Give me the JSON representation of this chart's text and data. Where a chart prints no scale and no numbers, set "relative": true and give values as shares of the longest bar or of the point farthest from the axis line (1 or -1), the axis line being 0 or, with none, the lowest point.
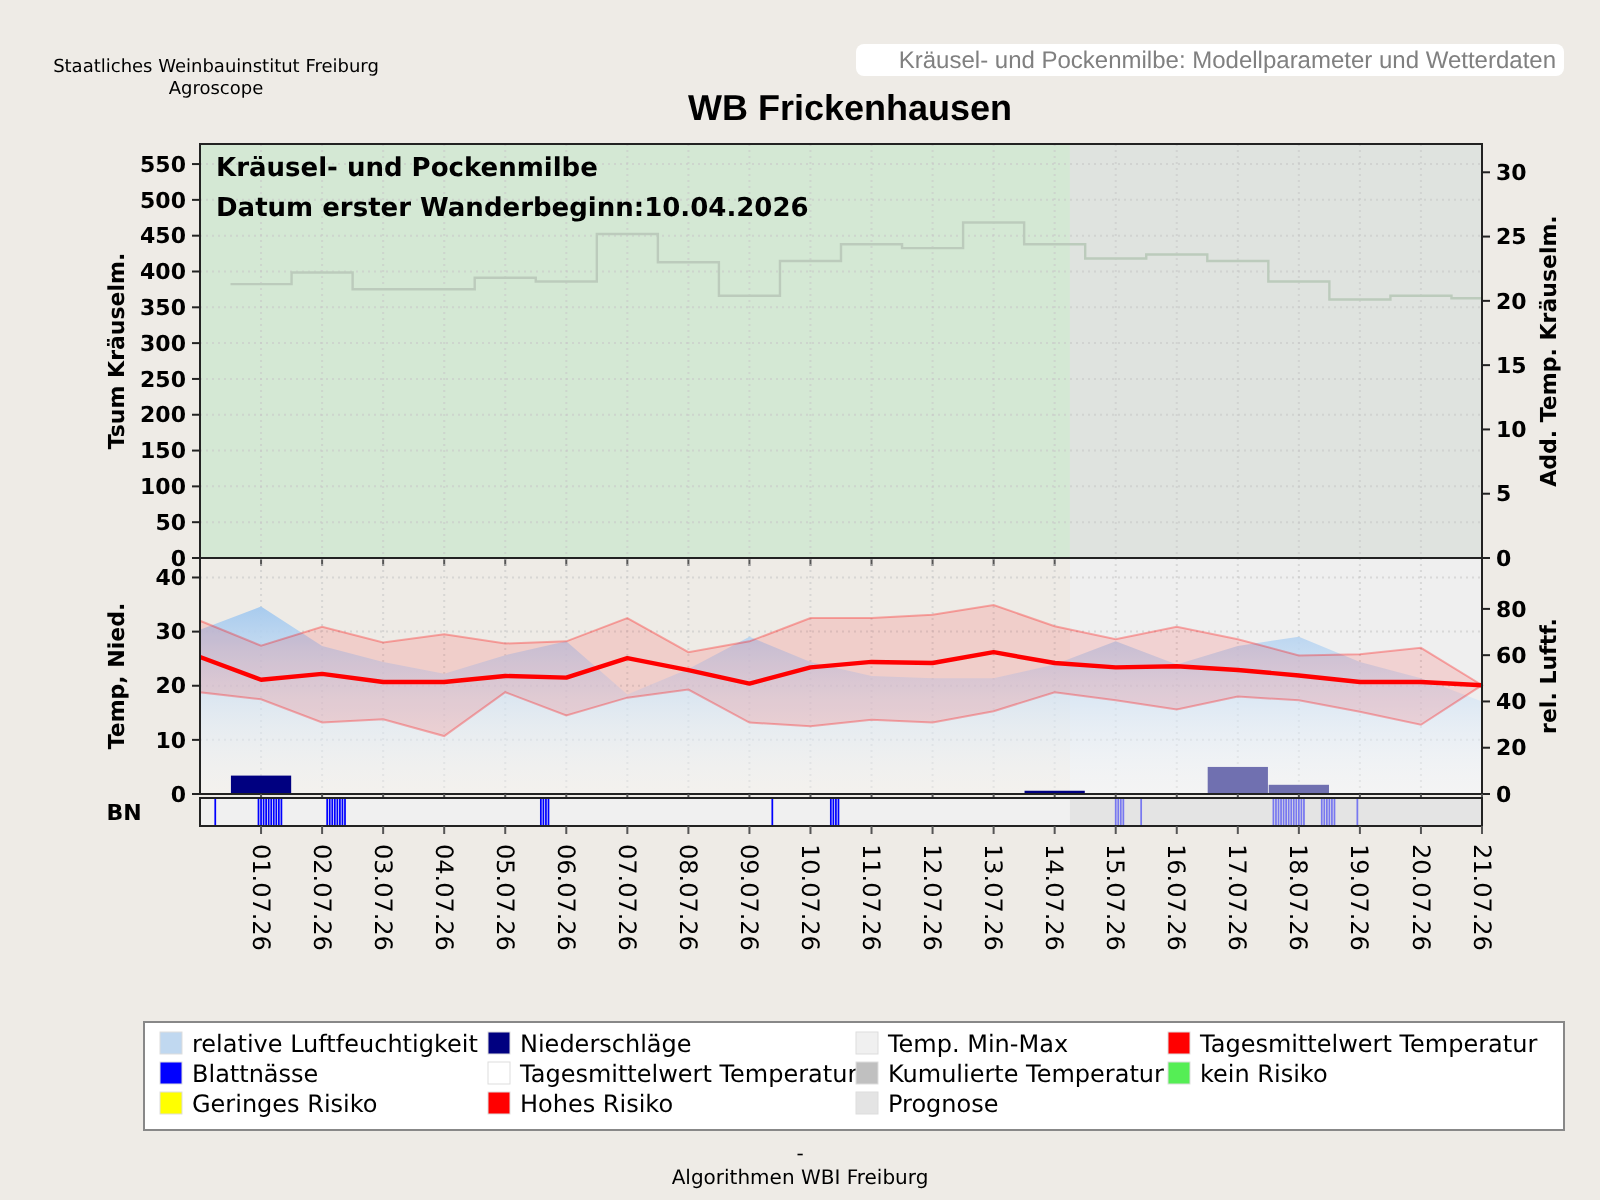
{
  "chart_data": [
    {
      "type": "step",
      "title": "WB Frickenhausen",
      "subtitle": "Kräusel- und Pockenmilbe: Modellparameter und Wetterdaten",
      "ylabel": "Tsum Kräuselm.",
      "y2label": "Add. Temp. Kräuselm.",
      "annotations": [
        "Kräusel- und Pockenmilbe",
        "Datum  erster Wanderbeginn:10.04.2026",
        "Staatliches Weinbauinstitut Freiburg",
        "Agroscope"
      ],
      "xlim": [
        "2026-06-30",
        "2026-07-21"
      ],
      "xticks": [
        {
          "value": "2026-07-01",
          "label": null
        },
        {
          "value": "2026-07-02",
          "label": null
        },
        {
          "value": "2026-07-03",
          "label": null
        },
        {
          "value": "2026-07-04",
          "label": null
        },
        {
          "value": "2026-07-05",
          "label": null
        },
        {
          "value": "2026-07-06",
          "label": null
        },
        {
          "value": "2026-07-07",
          "label": null
        },
        {
          "value": "2026-07-08",
          "label": null
        },
        {
          "value": "2026-07-09",
          "label": null
        },
        {
          "value": "2026-07-10",
          "label": null
        },
        {
          "value": "2026-07-11",
          "label": null
        },
        {
          "value": "2026-07-12",
          "label": null
        },
        {
          "value": "2026-07-13",
          "label": null
        },
        {
          "value": "2026-07-14",
          "label": null
        },
        {
          "value": "2026-07-15",
          "label": null
        },
        {
          "value": "2026-07-16",
          "label": null
        },
        {
          "value": "2026-07-17",
          "label": null
        },
        {
          "value": "2026-07-18",
          "label": null
        },
        {
          "value": "2026-07-19",
          "label": null
        },
        {
          "value": "2026-07-20",
          "label": null
        },
        {
          "value": "2026-07-21",
          "label": null
        }
      ],
      "ylim": [
        0,
        578
      ],
      "yticks": [
        0,
        50,
        100,
        150,
        200,
        250,
        300,
        350,
        400,
        450,
        500,
        550
      ],
      "y2lim": [
        0,
        32.2
      ],
      "y2ticks": [
        0,
        5,
        10,
        15,
        20,
        25,
        30
      ],
      "grid": true,
      "tick_labels": "y",
      "bands": [
        {
          "axis": "x",
          "from": "2026-06-30",
          "to": "2026-07-14T06:00",
          "color": "#d4e8d4"
        },
        {
          "axis": "x",
          "from": "2026-07-14T06:00",
          "to": "2026-07-21",
          "color": "#dfe3df"
        }
      ],
      "series": [
        {
          "axis": "y2",
          "color": "#bccbbc",
          "x": [
            "2026-06-30T12:00",
            "2026-07-01T12:00",
            "2026-07-02T12:00",
            "2026-07-03T12:00",
            "2026-07-04T12:00",
            "2026-07-05T12:00",
            "2026-07-06T12:00",
            "2026-07-07T12:00",
            "2026-07-08T12:00",
            "2026-07-09T12:00",
            "2026-07-10T12:00",
            "2026-07-11T12:00",
            "2026-07-12T12:00",
            "2026-07-13T12:00",
            "2026-07-14T12:00",
            "2026-07-15T12:00",
            "2026-07-16T12:00",
            "2026-07-17T12:00",
            "2026-07-18T12:00",
            "2026-07-19T12:00",
            "2026-07-20T12:00",
            "2026-07-21"
          ],
          "values": [
            21.3,
            22.2,
            20.9,
            20.9,
            21.8,
            21.5,
            25.2,
            23,
            20.4,
            23.1,
            24.4,
            24.1,
            26.1,
            24.4,
            23.3,
            23.6,
            23.1,
            21.5,
            20.1,
            20.4,
            20.2,
            20.2
          ]
        }
      ]
    },
    {
      "type": "line",
      "ylabel": "Temp, Nied.",
      "y2label": "rel. Luftf.",
      "x": [
        "2026-06-30",
        "2026-07-01",
        "2026-07-02",
        "2026-07-03",
        "2026-07-04",
        "2026-07-05",
        "2026-07-06",
        "2026-07-07",
        "2026-07-08",
        "2026-07-09",
        "2026-07-10",
        "2026-07-11",
        "2026-07-12",
        "2026-07-13",
        "2026-07-14",
        "2026-07-15",
        "2026-07-16",
        "2026-07-17",
        "2026-07-18",
        "2026-07-19",
        "2026-07-20",
        "2026-07-21"
      ],
      "xlim": [
        "2026-06-30",
        "2026-07-21"
      ],
      "xticks": [
        {
          "value": "2026-07-01",
          "label": null
        },
        {
          "value": "2026-07-02",
          "label": null
        },
        {
          "value": "2026-07-03",
          "label": null
        },
        {
          "value": "2026-07-04",
          "label": null
        },
        {
          "value": "2026-07-05",
          "label": null
        },
        {
          "value": "2026-07-06",
          "label": null
        },
        {
          "value": "2026-07-07",
          "label": null
        },
        {
          "value": "2026-07-08",
          "label": null
        },
        {
          "value": "2026-07-09",
          "label": null
        },
        {
          "value": "2026-07-10",
          "label": null
        },
        {
          "value": "2026-07-11",
          "label": null
        },
        {
          "value": "2026-07-12",
          "label": null
        },
        {
          "value": "2026-07-13",
          "label": null
        },
        {
          "value": "2026-07-14",
          "label": null
        },
        {
          "value": "2026-07-15",
          "label": null
        },
        {
          "value": "2026-07-16",
          "label": null
        },
        {
          "value": "2026-07-17",
          "label": null
        },
        {
          "value": "2026-07-18",
          "label": null
        },
        {
          "value": "2026-07-19",
          "label": null
        },
        {
          "value": "2026-07-20",
          "label": null
        },
        {
          "value": "2026-07-21",
          "label": null
        }
      ],
      "ylim": [
        0,
        43.6
      ],
      "yticks": [
        0,
        10,
        20,
        30,
        40
      ],
      "y2lim": [
        0,
        102
      ],
      "y2ticks": [
        0,
        20,
        40,
        60,
        80
      ],
      "grid": true,
      "tick_labels": "y",
      "bands": [
        {
          "axis": "x",
          "from": "2026-07-14T06:00",
          "to": "2026-07-21",
          "color": "#efefef"
        }
      ],
      "series": [
        {
          "type": "area",
          "axis": "y2",
          "color": "#a8cbee",
          "values": [
            71,
            81,
            64,
            57,
            52,
            60,
            66,
            43,
            54,
            68,
            57,
            51,
            50,
            50,
            56,
            66,
            56,
            64,
            68,
            57,
            50,
            40
          ]
        },
        {
          "type": "line",
          "color": "#ff0000",
          "values": [
            25.3,
            21.1,
            22.2,
            20.7,
            20.7,
            21.8,
            21.5,
            25.1,
            22.9,
            20.4,
            23.4,
            24.4,
            24.2,
            26.2,
            24.2,
            23.4,
            23.6,
            22.9,
            21.9,
            20.7,
            20.7,
            20.1
          ],
          "lower": [
            18.8,
            17.5,
            13.2,
            13.8,
            10.7,
            18.8,
            14.5,
            17.8,
            19.3,
            13.2,
            12.5,
            13.7,
            13.2,
            15.3,
            18.8,
            17.3,
            15.6,
            18,
            17.3,
            15.2,
            12.8,
            20.1
          ],
          "upper": [
            32,
            27.4,
            30.9,
            28,
            29.5,
            27.8,
            28.2,
            32.5,
            26.2,
            28.2,
            32.5,
            32.5,
            33.1,
            34.9,
            31,
            28.6,
            30.9,
            28.6,
            25.6,
            25.8,
            27,
            20.1
          ]
        },
        {
          "type": "bar",
          "x": [
            "2026-07-01",
            "2026-07-14",
            "2026-07-17",
            "2026-07-18"
          ],
          "values": [
            3.4,
            0.6,
            5,
            1.7
          ],
          "colors": [
            "#000080",
            "#000080",
            "#7070b0",
            "#7070b0"
          ]
        }
      ]
    },
    {
      "type": "bar",
      "relative": true,
      "ylabel": "BN",
      "xlim": [
        "2026-06-30",
        "2026-07-21"
      ],
      "tick_labels": "x",
      "xticks": [
        {
          "value": "2026-07-01",
          "label": "01.07.26"
        },
        {
          "value": "2026-07-02",
          "label": "02.07.26"
        },
        {
          "value": "2026-07-03",
          "label": "03.07.26"
        },
        {
          "value": "2026-07-04",
          "label": "04.07.26"
        },
        {
          "value": "2026-07-05",
          "label": "05.07.26"
        },
        {
          "value": "2026-07-06",
          "label": "06.07.26"
        },
        {
          "value": "2026-07-07",
          "label": "07.07.26"
        },
        {
          "value": "2026-07-08",
          "label": "08.07.26"
        },
        {
          "value": "2026-07-09",
          "label": "09.07.26"
        },
        {
          "value": "2026-07-10",
          "label": "10.07.26"
        },
        {
          "value": "2026-07-11",
          "label": "11.07.26"
        },
        {
          "value": "2026-07-12",
          "label": "12.07.26"
        },
        {
          "value": "2026-07-13",
          "label": "13.07.26"
        },
        {
          "value": "2026-07-14",
          "label": "14.07.26"
        },
        {
          "value": "2026-07-15",
          "label": "15.07.26"
        },
        {
          "value": "2026-07-16",
          "label": "16.07.26"
        },
        {
          "value": "2026-07-17",
          "label": "17.07.26"
        },
        {
          "value": "2026-07-18",
          "label": "18.07.26"
        },
        {
          "value": "2026-07-19",
          "label": "19.07.26"
        },
        {
          "value": "2026-07-20",
          "label": "20.07.26"
        },
        {
          "value": "2026-07-21",
          "label": "21.07.26"
        }
      ],
      "bands": [
        {
          "axis": "x",
          "from": "2026-07-14T06:00",
          "to": "2026-07-21",
          "color": "#e4e4e4"
        }
      ],
      "series": [
        {
          "color": "#0000ff",
          "x": [
            "2026-06-30T06:00",
            "2026-06-30T23:00",
            "2026-07-01T00:00",
            "2026-07-01T01:00",
            "2026-07-01T02:00",
            "2026-07-01T03:00",
            "2026-07-01T04:00",
            "2026-07-01T05:00",
            "2026-07-01T06:00",
            "2026-07-01T07:00",
            "2026-07-01T08:00",
            "2026-07-02T02:00",
            "2026-07-02T03:00",
            "2026-07-02T04:00",
            "2026-07-02T05:00",
            "2026-07-02T06:00",
            "2026-07-02T07:00",
            "2026-07-02T08:00",
            "2026-07-02T09:00",
            "2026-07-05T14:00",
            "2026-07-05T15:00",
            "2026-07-05T16:00",
            "2026-07-05T17:00",
            "2026-07-09T09:00",
            "2026-07-10T08:00",
            "2026-07-10T09:00",
            "2026-07-10T10:00",
            "2026-07-10T11:00"
          ],
          "values": [
            1,
            1,
            1,
            1,
            1,
            1,
            1,
            1,
            1,
            1,
            1,
            1,
            1,
            1,
            1,
            1,
            1,
            1,
            1,
            1,
            1,
            1,
            1,
            1,
            1,
            1,
            1,
            1
          ]
        },
        {
          "color": "#7878f0",
          "x": [
            "2026-07-15T00:00",
            "2026-07-15T01:00",
            "2026-07-15T02:00",
            "2026-07-15T03:00",
            "2026-07-15T10:00",
            "2026-07-17T14:00",
            "2026-07-17T15:00",
            "2026-07-17T16:00",
            "2026-07-17T17:00",
            "2026-07-17T18:00",
            "2026-07-17T19:00",
            "2026-07-17T20:00",
            "2026-07-17T21:00",
            "2026-07-17T22:00",
            "2026-07-17T23:00",
            "2026-07-18T00:00",
            "2026-07-18T01:00",
            "2026-07-18T02:00",
            "2026-07-18T09:00",
            "2026-07-18T10:00",
            "2026-07-18T11:00",
            "2026-07-18T12:00",
            "2026-07-18T13:00",
            "2026-07-18T14:00",
            "2026-07-18T23:00"
          ],
          "values": [
            1,
            1,
            1,
            1,
            1,
            1,
            1,
            1,
            1,
            1,
            1,
            1,
            1,
            1,
            1,
            1,
            1,
            1,
            1,
            1,
            1,
            1,
            1,
            1,
            1
          ]
        }
      ]
    },
    {
      "type": "other",
      "categories": [
        "relative Luftfeuchtigkeit",
        "Blattnässe",
        "Geringes Risiko",
        "Niederschläge",
        "Tagesmittelwert Temperatur",
        "Hohes Risiko",
        "Temp. Min-Max",
        "Kumulierte Temperatur",
        "Prognose",
        "Tagesmittelwert Temperatur",
        "kein Risiko"
      ],
      "colors": [
        "#c0d8f0",
        "#0000ff",
        "#ffff00",
        "#000080",
        "#ffffff",
        "#ff0000",
        "#f0f0f0",
        "#c0c0c0",
        "#e4e4e4",
        "#ff0000",
        "#55ee55"
      ],
      "annotations": [
        "-",
        "Algorithmen WBI Freiburg"
      ]
    }
  ]
}
